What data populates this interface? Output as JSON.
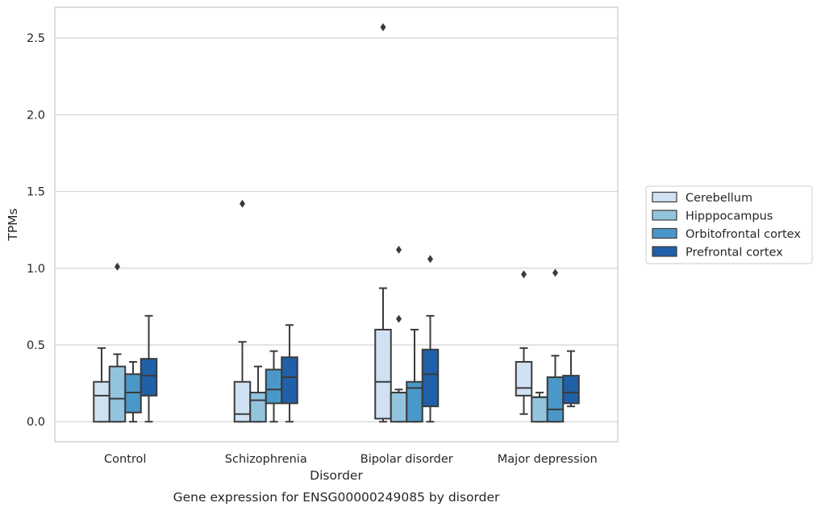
{
  "chart_data": {
    "type": "box",
    "title": "Gene expression for ENSG00000249085 by disorder",
    "xlabel": "Disorder",
    "ylabel": "TPMs",
    "ylim": [
      -0.13,
      2.7
    ],
    "yticks": [
      0.0,
      0.5,
      1.0,
      1.5,
      2.0,
      2.5
    ],
    "ytick_labels": [
      "0.0",
      "0.5",
      "1.0",
      "1.5",
      "2.0",
      "2.5"
    ],
    "categories": [
      "Control",
      "Schizophrenia",
      "Bipolar disorder",
      "Major depression"
    ],
    "grid": "horizontal",
    "legend_position": "right",
    "series": [
      {
        "name": "Cerebellum",
        "color": "#cfe1f2",
        "boxes": [
          {
            "whislo": 0.0,
            "q1": 0.0,
            "med": 0.17,
            "q3": 0.26,
            "whishi": 0.48,
            "fliers": []
          },
          {
            "whislo": 0.0,
            "q1": 0.0,
            "med": 0.05,
            "q3": 0.26,
            "whishi": 0.52,
            "fliers": [
              1.42
            ]
          },
          {
            "whislo": 0.0,
            "q1": 0.02,
            "med": 0.26,
            "q3": 0.6,
            "whishi": 0.87,
            "fliers": [
              2.57
            ]
          },
          {
            "whislo": 0.05,
            "q1": 0.17,
            "med": 0.22,
            "q3": 0.39,
            "whishi": 0.48,
            "fliers": [
              0.96
            ]
          }
        ]
      },
      {
        "name": "Hipppocampus",
        "color": "#93c4de",
        "boxes": [
          {
            "whislo": 0.0,
            "q1": 0.0,
            "med": 0.15,
            "q3": 0.36,
            "whishi": 0.44,
            "fliers": [
              1.01
            ]
          },
          {
            "whislo": 0.0,
            "q1": 0.0,
            "med": 0.14,
            "q3": 0.19,
            "whishi": 0.36,
            "fliers": []
          },
          {
            "whislo": 0.0,
            "q1": 0.0,
            "med": 0.19,
            "q3": 0.19,
            "whishi": 0.21,
            "fliers": [
              0.67,
              1.12
            ]
          },
          {
            "whislo": 0.0,
            "q1": 0.0,
            "med": 0.16,
            "q3": 0.16,
            "whishi": 0.19,
            "fliers": []
          }
        ]
      },
      {
        "name": "Orbitofrontal cortex",
        "color": "#4a98c9",
        "boxes": [
          {
            "whislo": 0.0,
            "q1": 0.06,
            "med": 0.19,
            "q3": 0.31,
            "whishi": 0.39,
            "fliers": []
          },
          {
            "whislo": 0.0,
            "q1": 0.12,
            "med": 0.21,
            "q3": 0.34,
            "whishi": 0.46,
            "fliers": []
          },
          {
            "whislo": 0.0,
            "q1": 0.0,
            "med": 0.22,
            "q3": 0.26,
            "whishi": 0.6,
            "fliers": []
          },
          {
            "whislo": 0.0,
            "q1": 0.0,
            "med": 0.08,
            "q3": 0.29,
            "whishi": 0.43,
            "fliers": [
              0.97
            ]
          }
        ]
      },
      {
        "name": "Prefrontal cortex",
        "color": "#2060a8",
        "boxes": [
          {
            "whislo": 0.0,
            "q1": 0.17,
            "med": 0.3,
            "q3": 0.41,
            "whishi": 0.69,
            "fliers": []
          },
          {
            "whislo": 0.0,
            "q1": 0.12,
            "med": 0.29,
            "q3": 0.42,
            "whishi": 0.63,
            "fliers": []
          },
          {
            "whislo": 0.0,
            "q1": 0.1,
            "med": 0.31,
            "q3": 0.47,
            "whishi": 0.69,
            "fliers": [
              1.06
            ]
          },
          {
            "whislo": 0.1,
            "q1": 0.12,
            "med": 0.19,
            "q3": 0.3,
            "whishi": 0.46,
            "fliers": []
          }
        ]
      }
    ]
  }
}
